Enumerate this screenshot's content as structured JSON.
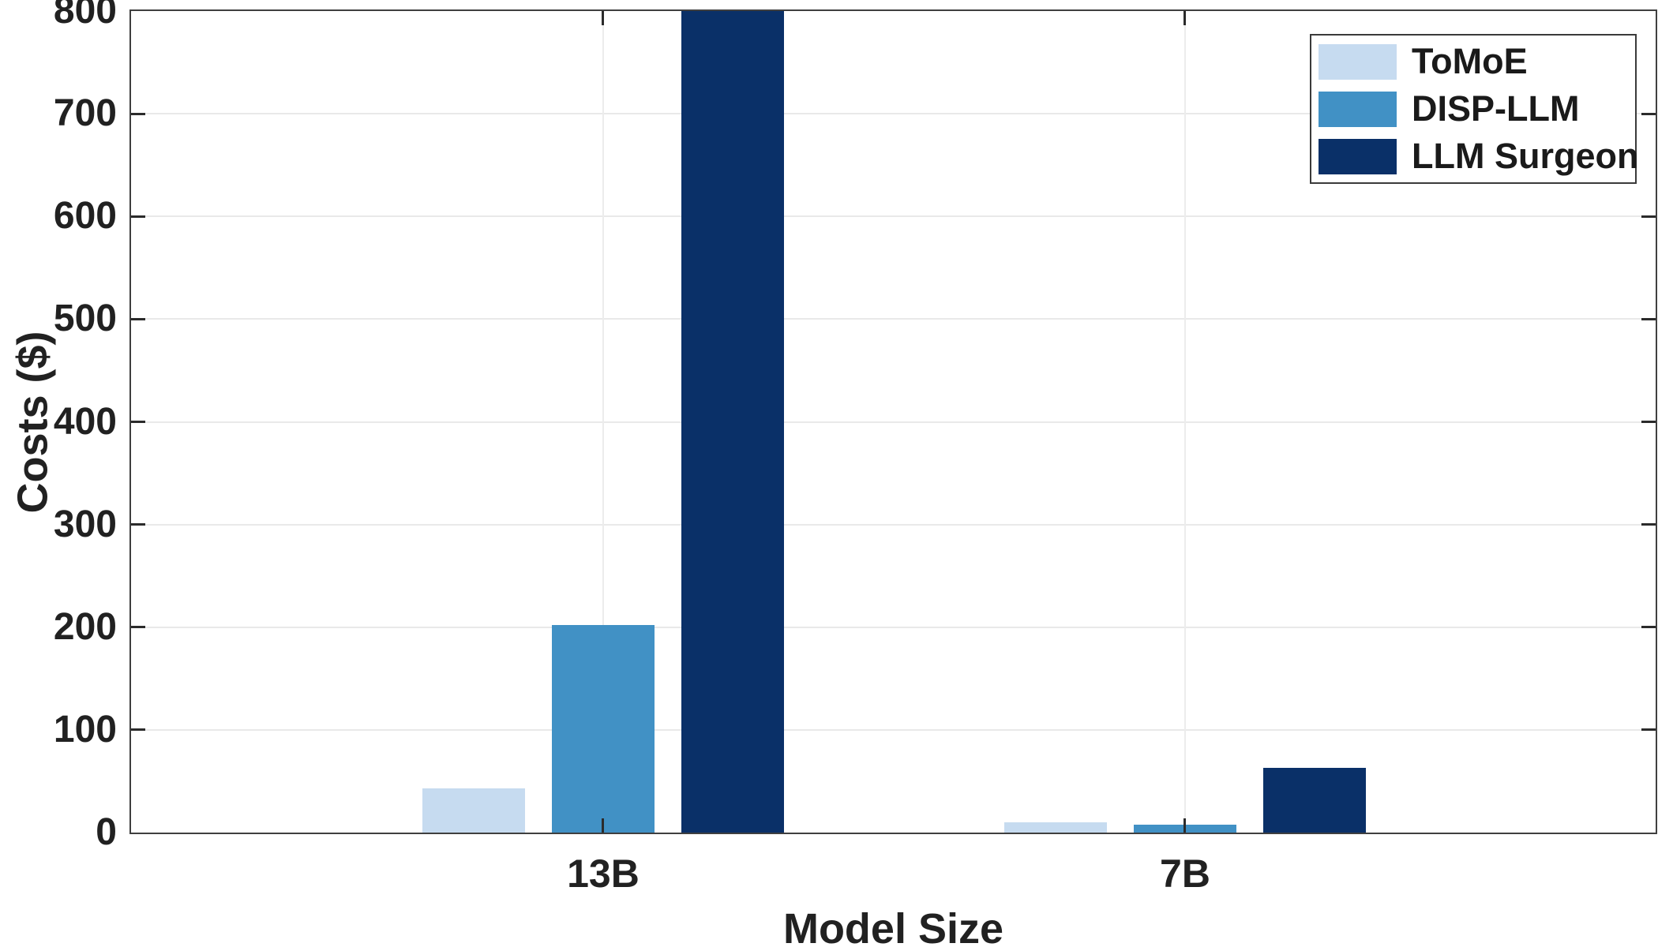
{
  "chart_data": {
    "type": "bar",
    "title": "",
    "xlabel": "Model Size",
    "ylabel": "Costs ($)",
    "categories": [
      "13B",
      "7B"
    ],
    "series": [
      {
        "name": "ToMoE",
        "color": "#C6DBF0",
        "values": [
          43,
          10
        ],
        "clipped": [
          false,
          false
        ]
      },
      {
        "name": "DISP-LLM",
        "color": "#4191C5",
        "values": [
          202,
          8
        ],
        "clipped": [
          false,
          false
        ]
      },
      {
        "name": "LLM Surgeon",
        "color": "#0A3068",
        "values": [
          800,
          63
        ],
        "clipped": [
          true,
          false
        ]
      }
    ],
    "ylim": [
      0,
      800
    ],
    "yticks": [
      0,
      100,
      200,
      300,
      400,
      500,
      600,
      700,
      800
    ],
    "grid": true,
    "legend_position": "top-right"
  }
}
